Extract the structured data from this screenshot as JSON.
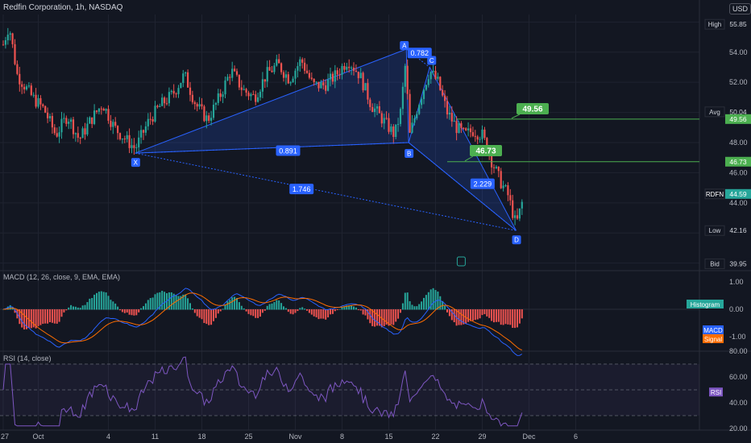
{
  "header": {
    "title": "Redfin Corporation, 1h, NASDAQ",
    "currency": "USD"
  },
  "price_axis": {
    "ticks": [
      "54.00",
      "52.00",
      "50.00",
      "48.00",
      "46.00",
      "44.00"
    ],
    "labels": [
      {
        "key": "High",
        "value": "55.85",
        "color": "#131722",
        "text_color": "#d1d4dc"
      },
      {
        "key": "Avg",
        "value": "50.04",
        "color": "#131722",
        "text_color": "#d1d4dc"
      },
      {
        "key": "",
        "value": "49.56",
        "color": "#4caf50",
        "text_color": "#ffffff"
      },
      {
        "key": "",
        "value": "46.73",
        "color": "#4caf50",
        "text_color": "#ffffff"
      },
      {
        "key": "RDFN",
        "value": "44.59",
        "color": "#26a69a",
        "text_color": "#ffffff"
      },
      {
        "key": "Low",
        "value": "42.16",
        "color": "#131722",
        "text_color": "#d1d4dc"
      },
      {
        "key": "Bid",
        "value": "39.95",
        "color": "#131722",
        "text_color": "#d1d4dc"
      }
    ]
  },
  "time_axis": {
    "labels": [
      "27",
      "Oct",
      "4",
      "11",
      "18",
      "25",
      "Nov",
      "8",
      "15",
      "22",
      "29",
      "Dec",
      "6"
    ]
  },
  "pattern": {
    "points": [
      {
        "label": "X",
        "x": 11.3,
        "y": 47.3
      },
      {
        "label": "A",
        "x": 34.5,
        "y": 54.2
      },
      {
        "label": "B",
        "x": 34.7,
        "y": 48.0
      },
      {
        "label": "C",
        "x": 36.5,
        "y": 53.0
      },
      {
        "label": "D",
        "x": 43.9,
        "y": 42.16
      }
    ],
    "ratios": [
      {
        "text": "0.782"
      },
      {
        "text": "0.891"
      },
      {
        "text": "1.746"
      },
      {
        "text": "2.229"
      }
    ],
    "fill_color": "#2962ff",
    "targets": [
      {
        "text": "49.56",
        "price": 49.56
      },
      {
        "text": "46.73",
        "price": 46.73
      }
    ]
  },
  "macd": {
    "label": "MACD (12, 26, close, 9, EMA, EMA)",
    "ticks": [
      "1.00",
      "0.00",
      "-1.00"
    ],
    "tags": [
      {
        "text": "Histogram",
        "color": "#26a69a"
      },
      {
        "text": "MACD",
        "color": "#2962ff"
      },
      {
        "text": "Signal",
        "color": "#ff6d00"
      }
    ],
    "colors": {
      "macd": "#2962ff",
      "signal": "#ff6d00",
      "hist_up": "#26a69a",
      "hist_down": "#ef5350"
    }
  },
  "rsi": {
    "label": "RSI (14, close)",
    "ticks": [
      "80.00",
      "60.00",
      "40.00",
      "20.00"
    ],
    "tag": {
      "text": "RSI",
      "color": "#7e57c2"
    },
    "line_color": "#7e57c2"
  },
  "chart_data": {
    "type": "candlestick",
    "symbol": "RDFN",
    "interval": "1h",
    "x_axis_unit": "trading days (Sep 27 = 0)",
    "xlim": [
      0,
      50
    ],
    "ylim": [
      39.5,
      56.5
    ],
    "anchors": [
      [
        0,
        54.5
      ],
      [
        0.5,
        55.8
      ],
      [
        1.2,
        52.5
      ],
      [
        2.5,
        51.0
      ],
      [
        3.5,
        50.2
      ],
      [
        4.5,
        48.5
      ],
      [
        5.5,
        49.8
      ],
      [
        6.5,
        48.2
      ],
      [
        7.5,
        49.5
      ],
      [
        8.5,
        50.6
      ],
      [
        9.5,
        49.0
      ],
      [
        10.5,
        48.2
      ],
      [
        11.3,
        47.6
      ],
      [
        12.5,
        49.5
      ],
      [
        13.5,
        50.5
      ],
      [
        14.5,
        51.2
      ],
      [
        15.5,
        52.5
      ],
      [
        16.5,
        50.5
      ],
      [
        17.5,
        49.5
      ],
      [
        18.5,
        51.0
      ],
      [
        19.5,
        52.8
      ],
      [
        20.5,
        51.5
      ],
      [
        21.5,
        51.0
      ],
      [
        22.5,
        52.5
      ],
      [
        23.5,
        53.2
      ],
      [
        24.5,
        52.2
      ],
      [
        25.5,
        53.5
      ],
      [
        26.5,
        51.8
      ],
      [
        27.5,
        51.8
      ],
      [
        28.5,
        52.5
      ],
      [
        29.5,
        53.5
      ],
      [
        30.5,
        52.5
      ],
      [
        31.5,
        50.5
      ],
      [
        32.5,
        49.5
      ],
      [
        33.5,
        48.5
      ],
      [
        34.0,
        50.0
      ],
      [
        34.5,
        53.8
      ],
      [
        34.7,
        48.2
      ],
      [
        35.5,
        50.5
      ],
      [
        36.5,
        52.8
      ],
      [
        37.2,
        52.0
      ],
      [
        38.0,
        50.0
      ],
      [
        38.8,
        49.0
      ],
      [
        39.5,
        48.5
      ],
      [
        40.2,
        48.8
      ],
      [
        41.0,
        48.5
      ],
      [
        41.8,
        46.8
      ],
      [
        42.5,
        45.5
      ],
      [
        43.2,
        44.5
      ],
      [
        43.9,
        42.5
      ],
      [
        44.6,
        44.59
      ]
    ]
  }
}
